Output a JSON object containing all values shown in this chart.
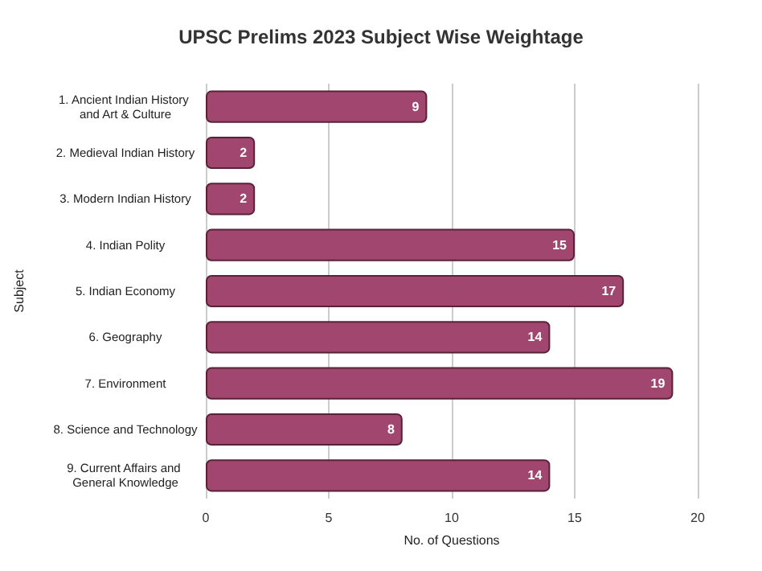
{
  "chart_data": {
    "type": "bar",
    "orientation": "horizontal",
    "title": "UPSC Prelims 2023 Subject Wise Weightage",
    "xlabel": "No. of Questions",
    "ylabel": "Subject",
    "categories": [
      "1. Ancient Indian History and Art & Culture",
      "2. Medieval Indian History",
      "3. Modern Indian History",
      "4. Indian Polity",
      "5. Indian Economy",
      "6. Geography",
      "7. Environment",
      "8. Science and Technology",
      "9. Current Affairs and General Knowledge"
    ],
    "values": [
      9,
      2,
      2,
      15,
      17,
      14,
      19,
      8,
      14
    ],
    "color": "#a0466f",
    "xlim": [
      0,
      20
    ],
    "xticks": [
      0,
      5,
      10,
      15,
      20
    ],
    "grid": "x",
    "data_labels": true
  }
}
